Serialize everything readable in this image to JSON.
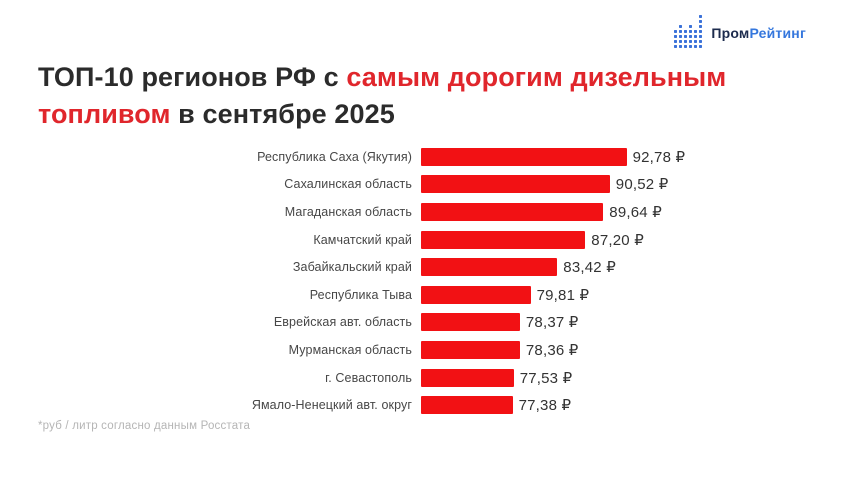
{
  "page": {
    "background": "#ffffff"
  },
  "logo": {
    "icon": "dotted-bar-chart-icon",
    "icon_color": "#3b72d9",
    "text_part1": "Пром",
    "text_part2": "Рейтинг",
    "color_part1": "#1c2b4d",
    "color_part2": "#3577dd"
  },
  "title": {
    "part1": "ТОП-10 регионов РФ с ",
    "accent": "самым дорогим дизельным топливом",
    "part2": " в сентябре 2025",
    "text_color": "#2b2b2b",
    "accent_color": "#e0262c"
  },
  "chart_data": {
    "type": "bar",
    "orientation": "horizontal",
    "title": "ТОП-10 регионов РФ с самым дорогим дизельным топливом в сентябре 2025",
    "unit": "руб / литр",
    "currency_symbol": "₽",
    "bar_color": "#f21114",
    "axis_min_visual": 65,
    "categories": [
      "Республика Саха (Якутия)",
      "Сахалинская область",
      "Магаданская область",
      "Камчатский край",
      "Забайкальский край",
      "Республика Тыва",
      "Еврейская авт. область",
      "Мурманская область",
      "г. Севастополь",
      "Ямало-Ненецкий авт. округ"
    ],
    "values": [
      92.78,
      90.52,
      89.64,
      87.2,
      83.42,
      79.81,
      78.37,
      78.36,
      77.53,
      77.38
    ],
    "value_labels": [
      "92,78 ₽",
      "90,52 ₽",
      "89,64 ₽",
      "87,20 ₽",
      "83,42 ₽",
      "79,81 ₽",
      "78,37 ₽",
      "78,36 ₽",
      "77,53 ₽",
      "77,38 ₽"
    ],
    "legend": null,
    "grid": false,
    "source": "Росстат"
  },
  "footnote": {
    "text": "*руб / литр согласно данным Росстата"
  }
}
